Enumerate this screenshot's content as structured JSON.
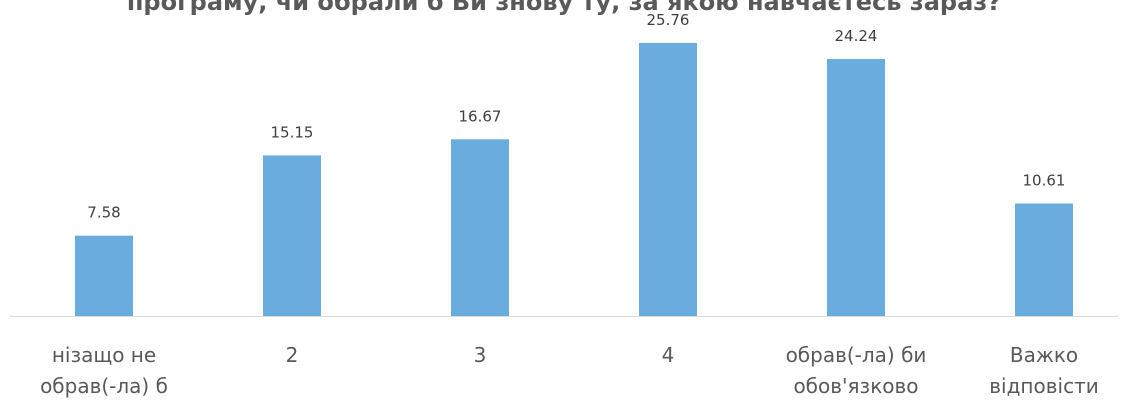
{
  "chart_data": {
    "type": "bar",
    "title": "програму, чи обрали б Ви знову ту, за якою навчаєтесь зараз?",
    "categories": [
      "нізащо не обрав(-ла) б",
      "2",
      "3",
      "4",
      "обрав(-ла) би обов'язково",
      "Важко відповісти"
    ],
    "values": [
      7.58,
      15.15,
      16.67,
      25.76,
      24.24,
      10.61
    ],
    "color": "#6aacde"
  }
}
